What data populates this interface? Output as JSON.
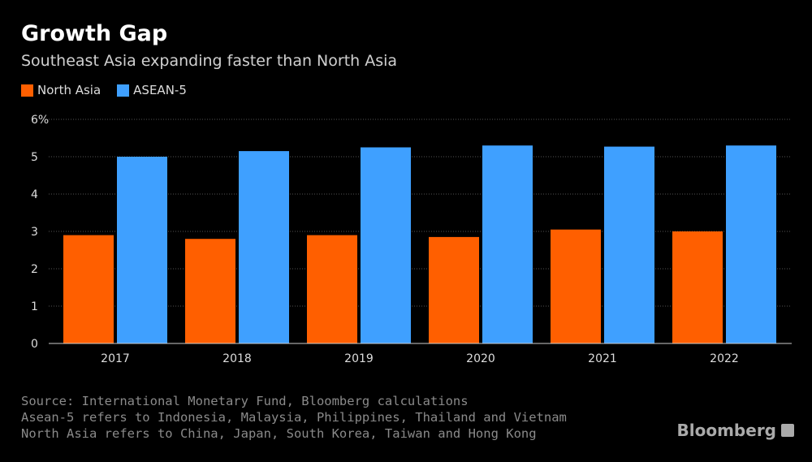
{
  "chart_data": {
    "type": "bar",
    "title": "Growth Gap",
    "subtitle": "Southeast Asia expanding faster than North Asia",
    "categories": [
      "2017",
      "2018",
      "2019",
      "2020",
      "2021",
      "2022"
    ],
    "series": [
      {
        "name": "North Asia",
        "color": "#ff5f00",
        "values": [
          2.9,
          2.8,
          2.9,
          2.85,
          3.05,
          3.0
        ]
      },
      {
        "name": "ASEAN-5",
        "color": "#3fa0ff",
        "values": [
          5.0,
          5.15,
          5.25,
          5.3,
          5.27,
          5.3
        ]
      }
    ],
    "ylim": [
      0,
      6
    ],
    "yticks": [
      "0",
      "1",
      "2",
      "3",
      "4",
      "5",
      "6%"
    ],
    "grid": true,
    "legend": "top-left"
  },
  "notes": [
    "Source: International Monetary Fund, Bloomberg calculations",
    "Asean-5 refers to Indonesia, Malaysia, Philippines, Thailand and Vietnam",
    "North Asia refers to China, Japan, South Korea, Taiwan and Hong Kong"
  ],
  "logo": "Bloomberg"
}
